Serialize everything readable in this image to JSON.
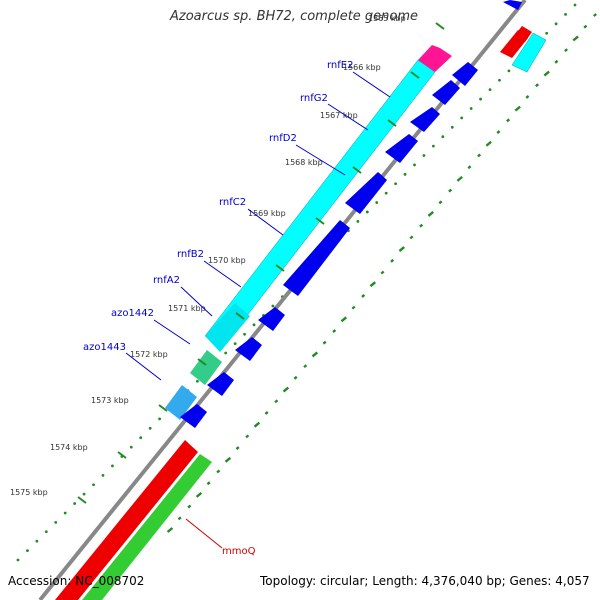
{
  "title": "Azoarcus sp. BH72, complete genome",
  "footer": {
    "accession": "Accession: NC_008702",
    "topology": "Topology: circular; Length: 4,376,040 bp; Genes: 4,057"
  },
  "ticks": [
    {
      "label": "1565 kbp"
    },
    {
      "label": "1566 kbp"
    },
    {
      "label": "1567 kbp"
    },
    {
      "label": "1568 kbp"
    },
    {
      "label": "1569 kbp"
    },
    {
      "label": "1570 kbp"
    },
    {
      "label": "1571 kbp"
    },
    {
      "label": "1572 kbp"
    },
    {
      "label": "1573 kbp"
    },
    {
      "label": "1574 kbp"
    },
    {
      "label": "1575 kbp"
    }
  ],
  "gene_labels": [
    {
      "text": "rnfE2",
      "color": "#0000cc"
    },
    {
      "text": "rnfG2",
      "color": "#0000cc"
    },
    {
      "text": "rnfD2",
      "color": "#0000cc"
    },
    {
      "text": "rnfC2",
      "color": "#0000cc"
    },
    {
      "text": "rnfB2",
      "color": "#0000cc"
    },
    {
      "text": "rnfA2",
      "color": "#0000cc"
    },
    {
      "text": "azo1442",
      "color": "#0000cc"
    },
    {
      "text": "azo1443",
      "color": "#0000cc"
    },
    {
      "text": "mmoQ",
      "color": "#cc0000"
    }
  ],
  "colors": {
    "backbone": "#888888",
    "cds": "#0000ee",
    "rnf": "#00ffff",
    "magenta": "#ff1493",
    "green": "#33cc66",
    "red": "#ee0000",
    "lightblue": "#33aaff",
    "tick_green": "#228b22"
  }
}
